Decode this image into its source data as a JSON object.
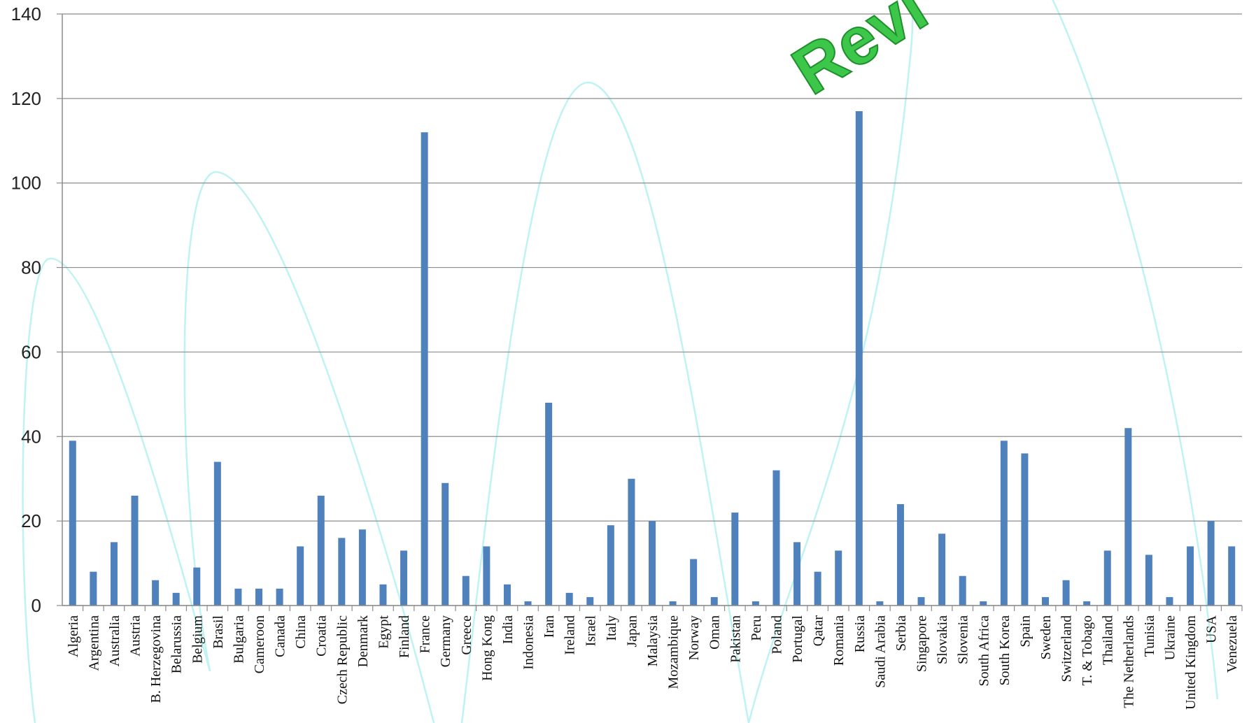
{
  "colors": {
    "bar": "#4f81bd",
    "grid": "#8c8c8c",
    "axis": "#8c8c8c",
    "watermark_fill": "#3cc64a",
    "watermark_stroke": "#1e8f2a",
    "decor_curve": "#bff3f3"
  },
  "watermark": {
    "text": "Revi"
  },
  "chart_data": {
    "type": "bar",
    "title": "",
    "xlabel": "",
    "ylabel": "",
    "ylim": [
      0,
      140
    ],
    "yticks": [
      0,
      20,
      40,
      60,
      80,
      100,
      120,
      140
    ],
    "grid": true,
    "legend": "none",
    "categories": [
      "Algeria",
      "Argentina",
      "Australia",
      "Austria",
      "B. Herzegovina",
      "Belarussia",
      "Belgium",
      "Brasil",
      "Bulgaria",
      "Cameroon",
      "Canada",
      "China",
      "Croatia",
      "Czech Republic",
      "Denmark",
      "Egypt",
      "Finland",
      "France",
      "Germany",
      "Greece",
      "Hong Kong",
      "India",
      "Indonesia",
      "Iran",
      "Ireland",
      "Israel",
      "Italy",
      "Japan",
      "Malaysia",
      "Mozambique",
      "Norway",
      "Oman",
      "Pakistan",
      "Peru",
      "Poland",
      "Portugal",
      "Qatar",
      "Romania",
      "Russia",
      "Saudi Arabia",
      "Serbia",
      "Singapore",
      "Slovakia",
      "Slovenia",
      "South Africa",
      "South Korea",
      "Spain",
      "Sweden",
      "Switzerland",
      "T. & Tobago",
      "Thailand",
      "The Netherlands",
      "Tunisia",
      "Ukraine",
      "United Kingdom",
      "USA",
      "Venezuela"
    ],
    "values": [
      39,
      8,
      15,
      26,
      6,
      3,
      9,
      34,
      4,
      4,
      4,
      14,
      26,
      16,
      18,
      5,
      13,
      112,
      29,
      7,
      14,
      5,
      1,
      48,
      3,
      2,
      19,
      30,
      20,
      1,
      11,
      2,
      22,
      1,
      32,
      15,
      8,
      13,
      117,
      1,
      24,
      2,
      17,
      7,
      1,
      39,
      36,
      2,
      6,
      1,
      13,
      42,
      12,
      2,
      14,
      20,
      14
    ]
  }
}
